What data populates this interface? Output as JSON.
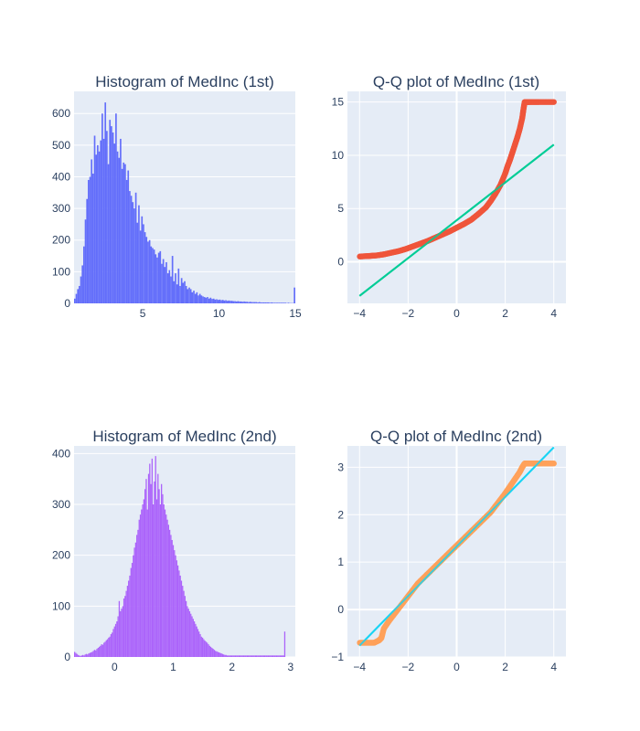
{
  "chart_data": [
    {
      "type": "bar",
      "subtype": "histogram",
      "title": "Histogram of MedInc (1st)",
      "xlim": [
        0.4999,
        15.0001
      ],
      "ylim": [
        0,
        670
      ],
      "xticks": [
        5,
        10,
        15
      ],
      "xtick_labels": [
        "5",
        "10",
        "15"
      ],
      "yticks": [
        0,
        100,
        200,
        300,
        400,
        500,
        600
      ],
      "ytick_labels": [
        "0",
        "100",
        "200",
        "300",
        "400",
        "500",
        "600"
      ],
      "color": "#636efa",
      "bin_start": 0.5,
      "bin_width": 0.1,
      "values": [
        15,
        30,
        45,
        55,
        85,
        120,
        180,
        265,
        330,
        390,
        400,
        455,
        410,
        530,
        470,
        500,
        480,
        515,
        600,
        520,
        635,
        545,
        440,
        580,
        560,
        540,
        505,
        600,
        480,
        460,
        520,
        425,
        445,
        440,
        390,
        420,
        355,
        340,
        320,
        300,
        350,
        255,
        310,
        230,
        275,
        250,
        225,
        210,
        195,
        200,
        180,
        175,
        170,
        155,
        145,
        160,
        165,
        125,
        140,
        115,
        130,
        95,
        105,
        85,
        150,
        70,
        95,
        60,
        110,
        55,
        80,
        65,
        70,
        55,
        45,
        50,
        45,
        35,
        40,
        30,
        35,
        25,
        30,
        25,
        22,
        20,
        18,
        20,
        15,
        18,
        14,
        15,
        12,
        13,
        11,
        12,
        10,
        11,
        9,
        10,
        8,
        9,
        8,
        8,
        7,
        7,
        6,
        7,
        6,
        6,
        5,
        6,
        5,
        5,
        4,
        5,
        4,
        4,
        4,
        4,
        3,
        4,
        3,
        3,
        3,
        3,
        3,
        3,
        2,
        3,
        2,
        2,
        2,
        2,
        2,
        2,
        2,
        2,
        2,
        1,
        2,
        1,
        1,
        1,
        50
      ],
      "grid": true
    },
    {
      "type": "scatter",
      "subtype": "qq",
      "title": "Q-Q plot of MedInc (1st)",
      "xlim": [
        -4.5,
        4.5
      ],
      "ylim": [
        -3.9,
        16.0
      ],
      "xticks": [
        -4,
        -2,
        0,
        2,
        4
      ],
      "xtick_labels": [
        "−4",
        "−2",
        "0",
        "2",
        "4"
      ],
      "yticks": [
        0,
        5,
        10,
        15
      ],
      "ytick_labels": [
        "0",
        "5",
        "10",
        "15"
      ],
      "series": [
        {
          "kind": "points",
          "color": "#ef553b",
          "x": [
            -3.99,
            -3.6,
            -3.3,
            -3.0,
            -2.7,
            -2.4,
            -2.1,
            -1.8,
            -1.5,
            -1.2,
            -0.9,
            -0.6,
            -0.3,
            0.0,
            0.3,
            0.6,
            0.9,
            1.2,
            1.4,
            1.6,
            1.8,
            2.0,
            2.1,
            2.2,
            2.3,
            2.4,
            2.5,
            2.6,
            2.7,
            2.75,
            2.8,
            3.0,
            3.4,
            4.0
          ],
          "y": [
            0.5,
            0.55,
            0.6,
            0.7,
            0.85,
            1.0,
            1.2,
            1.45,
            1.7,
            1.95,
            2.25,
            2.55,
            2.85,
            3.2,
            3.55,
            3.95,
            4.5,
            5.1,
            5.7,
            6.4,
            7.2,
            8.3,
            9.0,
            9.6,
            10.3,
            11.0,
            11.7,
            12.5,
            13.5,
            14.3,
            15.0,
            15.0,
            15.0,
            15.0
          ]
        },
        {
          "kind": "line",
          "color": "#00cc96",
          "x": [
            -4,
            4
          ],
          "y": [
            -3.2,
            11.0
          ]
        }
      ],
      "grid": true
    },
    {
      "type": "bar",
      "subtype": "histogram",
      "title": "Histogram of MedInc (2nd)",
      "xlim": [
        -0.69,
        3.08
      ],
      "ylim": [
        0,
        415
      ],
      "xticks": [
        0,
        1,
        2,
        3
      ],
      "xtick_labels": [
        "0",
        "1",
        "2",
        "3"
      ],
      "yticks": [
        0,
        100,
        200,
        300,
        400
      ],
      "ytick_labels": [
        "0",
        "100",
        "200",
        "300",
        "400"
      ],
      "color": "#ab63fa",
      "bin_start": -0.69,
      "bin_width": 0.02,
      "values": [
        10,
        8,
        6,
        4,
        3,
        2,
        3,
        4,
        3,
        5,
        6,
        5,
        7,
        8,
        9,
        10,
        12,
        14,
        13,
        16,
        18,
        20,
        22,
        25,
        24,
        28,
        30,
        33,
        35,
        38,
        40,
        45,
        48,
        55,
        60,
        65,
        70,
        80,
        110,
        90,
        95,
        100,
        115,
        120,
        130,
        140,
        150,
        160,
        175,
        185,
        200,
        215,
        225,
        240,
        250,
        270,
        280,
        290,
        300,
        310,
        330,
        350,
        290,
        360,
        380,
        340,
        390,
        300,
        345,
        395,
        310,
        360,
        330,
        300,
        340,
        320,
        300,
        290,
        280,
        270,
        260,
        250,
        240,
        230,
        220,
        210,
        200,
        190,
        180,
        170,
        160,
        150,
        140,
        130,
        120,
        110,
        100,
        95,
        90,
        85,
        80,
        75,
        70,
        65,
        60,
        55,
        50,
        45,
        40,
        38,
        35,
        32,
        30,
        28,
        25,
        22,
        20,
        18,
        16,
        14,
        12,
        11,
        10,
        9,
        8,
        7,
        6,
        5,
        4,
        4,
        3,
        3,
        3,
        3,
        3,
        3,
        3,
        3,
        3,
        3,
        3,
        3,
        3,
        3,
        3,
        3,
        3,
        3,
        3,
        3,
        3,
        3,
        3,
        3,
        3,
        3,
        3,
        3,
        3,
        3,
        3,
        3,
        3,
        3,
        3,
        3,
        3,
        3,
        3,
        3,
        3,
        3,
        3,
        3,
        3,
        3,
        3,
        3,
        3,
        50
      ]
    },
    {
      "type": "scatter",
      "subtype": "qq",
      "title": "Q-Q plot of MedInc (2nd)",
      "xlim": [
        -4.5,
        4.5
      ],
      "ylim": [
        -1.0,
        3.45
      ],
      "xticks": [
        -4,
        -2,
        0,
        2,
        4
      ],
      "xtick_labels": [
        "−4",
        "−2",
        "0",
        "2",
        "4"
      ],
      "yticks": [
        -1,
        0,
        1,
        2,
        3
      ],
      "ytick_labels": [
        "−1",
        "0",
        "1",
        "2",
        "3"
      ],
      "series": [
        {
          "kind": "points",
          "color": "#ffa15a",
          "x": [
            -3.99,
            -3.7,
            -3.4,
            -3.2,
            -3.1,
            -3.0,
            -2.8,
            -2.5,
            -2.2,
            -1.9,
            -1.6,
            -1.3,
            -1.0,
            -0.7,
            -0.4,
            -0.1,
            0.2,
            0.5,
            0.8,
            1.1,
            1.4,
            1.7,
            2.0,
            2.2,
            2.4,
            2.6,
            2.7,
            2.8,
            3.0,
            3.4,
            4.0
          ],
          "y": [
            -0.7,
            -0.7,
            -0.7,
            -0.65,
            -0.6,
            -0.4,
            -0.25,
            -0.05,
            0.15,
            0.35,
            0.55,
            0.7,
            0.85,
            1.0,
            1.15,
            1.3,
            1.45,
            1.6,
            1.75,
            1.9,
            2.05,
            2.25,
            2.45,
            2.6,
            2.75,
            2.9,
            3.0,
            3.08,
            3.08,
            3.08,
            3.08
          ]
        },
        {
          "kind": "line",
          "color": "#19d3f3",
          "x": [
            -4,
            4
          ],
          "y": [
            -0.76,
            3.42
          ]
        }
      ],
      "grid": true
    }
  ]
}
